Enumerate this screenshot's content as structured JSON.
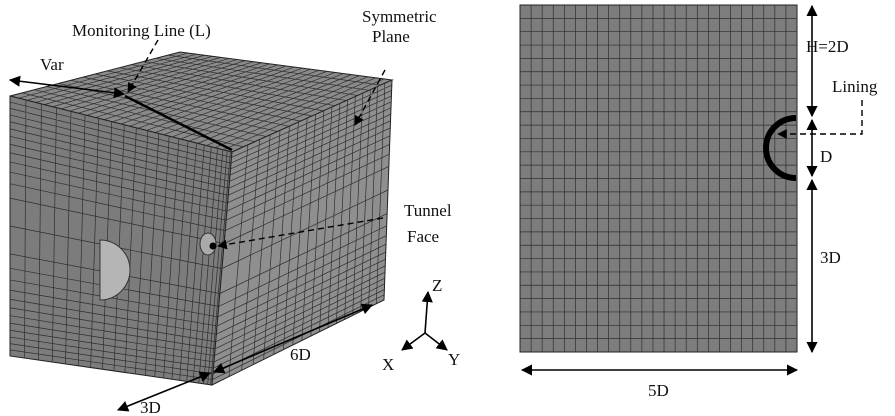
{
  "left_panel": {
    "monitoring_label": "Monitoring Line (L)",
    "symmetric_label": [
      "Symmetric",
      "Plane"
    ],
    "var_label": "Var",
    "tunnel_face_label": [
      "Tunnel",
      "Face"
    ],
    "axes": {
      "z": "Z",
      "x": "X",
      "y": "Y"
    },
    "length_label": "6D",
    "width_label": "3D"
  },
  "right_panel": {
    "height_label": "H=2D",
    "lining_label": "Lining",
    "diameter_label": "D",
    "depth_label": "3D",
    "width_label": "5D"
  }
}
